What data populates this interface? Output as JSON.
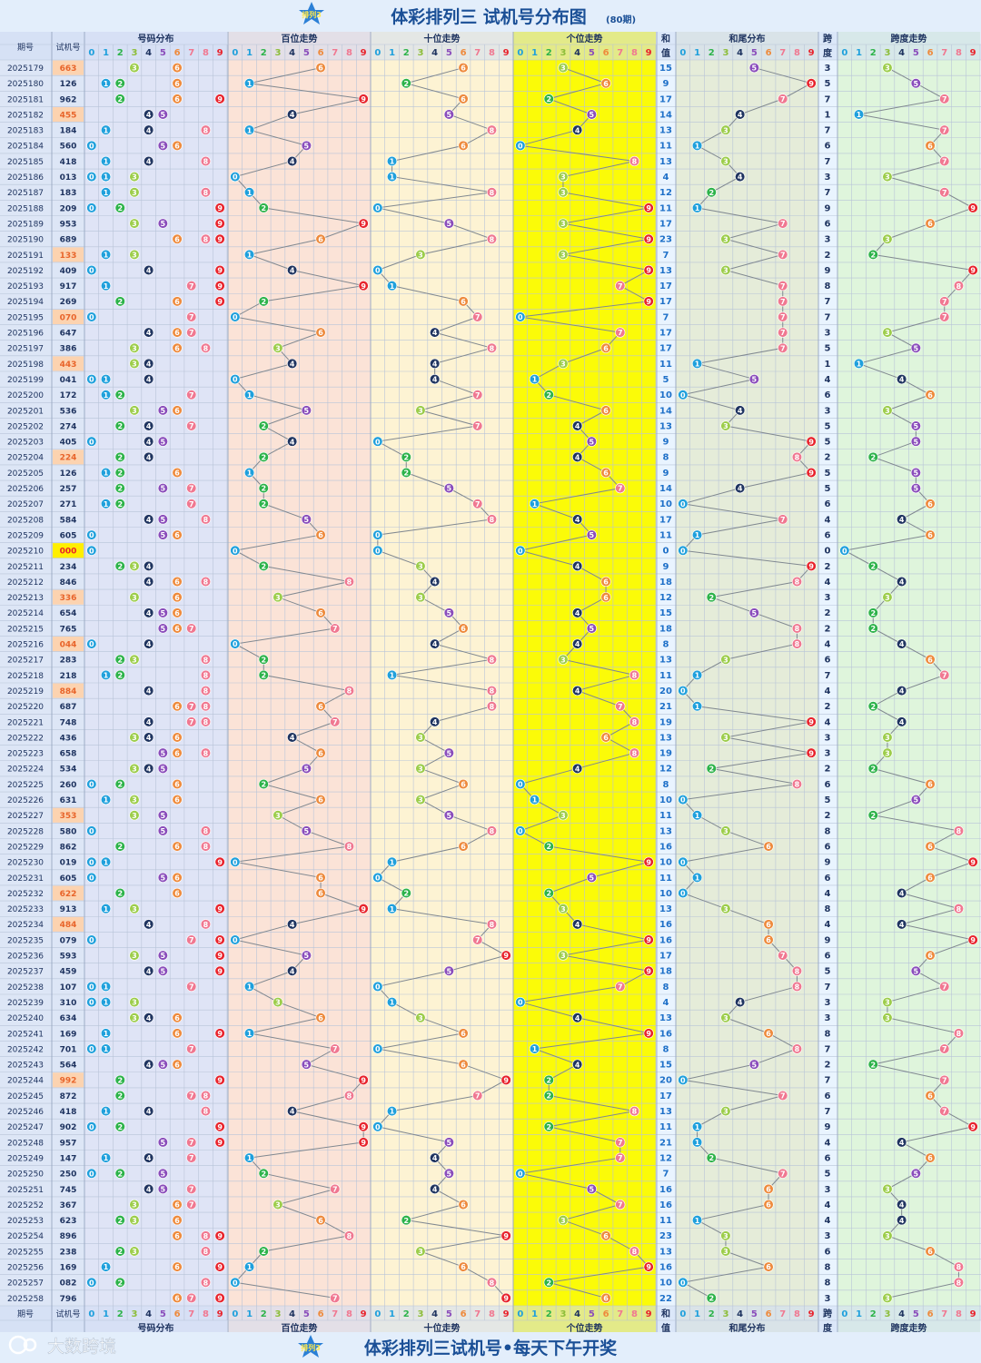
{
  "title": "体彩排列三 试机号分布图",
  "title_note": "(80期)",
  "logo_text": "排列3",
  "footer": {
    "brand": "大数跨境",
    "slogan": "体彩排列三试机号•每天下午开奖"
  },
  "headers": {
    "issue": "期号",
    "shiji": "试机号",
    "dist": "号码分布",
    "bai": "百位走势",
    "shi": "十位走势",
    "ge": "个位走势",
    "he1": "和",
    "he2": "值",
    "hewei": "和尾分布",
    "kua1": "跨",
    "kua2": "度",
    "kuadu": "跨度走势"
  },
  "digits": [
    "0",
    "1",
    "2",
    "3",
    "4",
    "5",
    "6",
    "7",
    "8",
    "9"
  ],
  "colors": {
    "blue": "#1fa0dc",
    "green": "#2db34a",
    "lime": "#9ccd4a",
    "navy": "#1f3460",
    "purple": "#8a4dbb",
    "orange": "#ee8a3c",
    "pink": "#f07891",
    "red": "#e8232c",
    "sum_text": "#1e70c8",
    "shiji_text": "#e8642a",
    "title_text": "#1a4f96"
  },
  "chart_data": {
    "type": "table",
    "issues": [
      "2025179",
      "2025180",
      "2025181",
      "2025182",
      "2025183",
      "2025184",
      "2025185",
      "2025186",
      "2025187",
      "2025188",
      "2025189",
      "2025190",
      "2025191",
      "2025192",
      "2025193",
      "2025194",
      "2025195",
      "2025196",
      "2025197",
      "2025198",
      "2025199",
      "2025200",
      "2025201",
      "2025202",
      "2025203",
      "2025204",
      "2025205",
      "2025206",
      "2025207",
      "2025208",
      "2025209",
      "2025210",
      "2025211",
      "2025212",
      "2025213",
      "2025214",
      "2025215",
      "2025216",
      "2025217",
      "2025218",
      "2025219",
      "2025220",
      "2025221",
      "2025222",
      "2025223",
      "2025224",
      "2025225",
      "2025226",
      "2025227",
      "2025228",
      "2025229",
      "2025230",
      "2025231",
      "2025232",
      "2025233",
      "2025234",
      "2025235",
      "2025236",
      "2025237",
      "2025238",
      "2025239",
      "2025240",
      "2025241",
      "2025242",
      "2025243",
      "2025244",
      "2025245",
      "2025246",
      "2025247",
      "2025248",
      "2025249",
      "2025250",
      "2025251",
      "2025252",
      "2025253",
      "2025254",
      "2025255",
      "2025256",
      "2025257",
      "2025258"
    ],
    "numbers": [
      "663",
      "126",
      "962",
      "455",
      "184",
      "560",
      "418",
      "013",
      "183",
      "209",
      "953",
      "689",
      "133",
      "409",
      "917",
      "269",
      "070",
      "647",
      "386",
      "443",
      "041",
      "172",
      "536",
      "274",
      "405",
      "224",
      "126",
      "257",
      "271",
      "584",
      "605",
      "000",
      "234",
      "846",
      "336",
      "654",
      "765",
      "044",
      "283",
      "218",
      "884",
      "687",
      "748",
      "436",
      "658",
      "534",
      "260",
      "631",
      "353",
      "580",
      "862",
      "019",
      "605",
      "622",
      "913",
      "484",
      "079",
      "593",
      "459",
      "107",
      "310",
      "634",
      "169",
      "701",
      "564",
      "992",
      "872",
      "418",
      "902",
      "957",
      "147",
      "250",
      "745",
      "367",
      "623",
      "896",
      "238",
      "169",
      "082",
      "796"
    ],
    "sums": [
      "15",
      "9",
      "17",
      "14",
      "13",
      "11",
      "13",
      "4",
      "12",
      "11",
      "17",
      "23",
      "7",
      "13",
      "17",
      "17",
      "7",
      "17",
      "17",
      "11",
      "5",
      "10",
      "14",
      "13",
      "9",
      "8",
      "9",
      "14",
      "10",
      "17",
      "11",
      "0",
      "9",
      "18",
      "12",
      "15",
      "18",
      "8",
      "13",
      "11",
      "20",
      "21",
      "19",
      "13",
      "19",
      "12",
      "8",
      "10",
      "11",
      "13",
      "16",
      "10",
      "11",
      "10",
      "13",
      "16",
      "16",
      "17",
      "18",
      "8",
      "4",
      "13",
      "16",
      "8",
      "15",
      "20",
      "17",
      "13",
      "11",
      "21",
      "12",
      "7",
      "16",
      "16",
      "11",
      "23",
      "13",
      "16",
      "10",
      "22"
    ],
    "spans": [
      "3",
      "5",
      "7",
      "1",
      "7",
      "6",
      "7",
      "3",
      "7",
      "9",
      "6",
      "3",
      "2",
      "9",
      "8",
      "7",
      "7",
      "3",
      "5",
      "1",
      "4",
      "6",
      "3",
      "5",
      "5",
      "2",
      "5",
      "5",
      "6",
      "4",
      "6",
      "0",
      "2",
      "4",
      "3",
      "2",
      "2",
      "4",
      "6",
      "7",
      "4",
      "2",
      "4",
      "3",
      "3",
      "2",
      "6",
      "5",
      "2",
      "8",
      "6",
      "9",
      "6",
      "4",
      "8",
      "4",
      "9",
      "6",
      "5",
      "7",
      "3",
      "3",
      "8",
      "7",
      "2",
      "7",
      "6",
      "7",
      "9",
      "4",
      "6",
      "5",
      "3",
      "4",
      "4",
      "3",
      "6",
      "8",
      "8",
      "3"
    ]
  }
}
